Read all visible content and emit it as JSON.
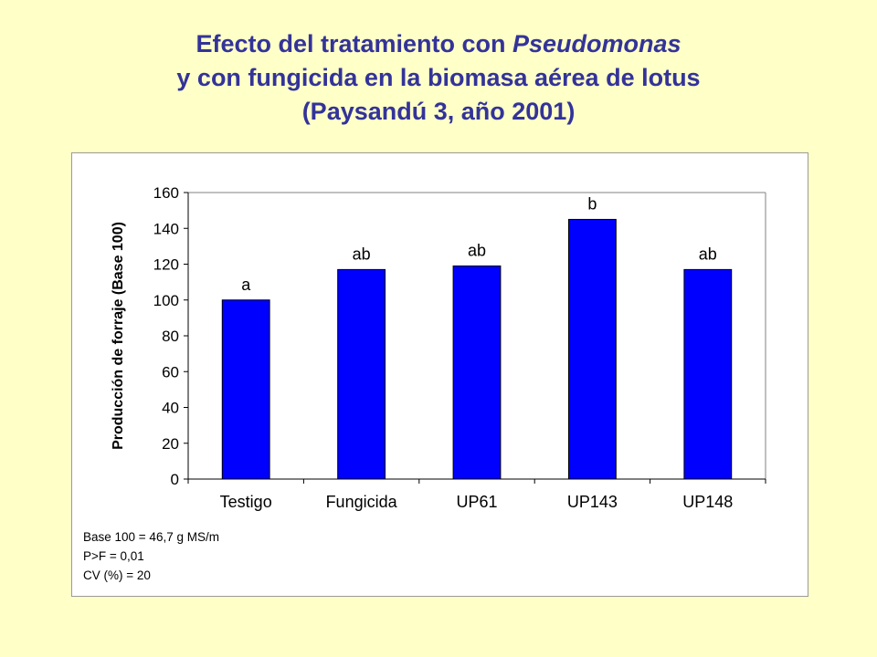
{
  "title": {
    "line1_prefix": "Efecto del tratamiento con ",
    "line1_italic": "Pseudomonas",
    "line2": "y con fungicida en la biomasa aérea de lotus",
    "line3": "(Paysandú 3, año 2001)"
  },
  "notes": [
    "Base 100 = 46,7 g MS/m",
    "P>F = 0,01",
    "CV (%) = 20"
  ],
  "colors": {
    "title": "#333399",
    "bar": "#0000ff",
    "background": "#ffffc8"
  },
  "chart_data": {
    "type": "bar",
    "title": "",
    "xlabel": "",
    "ylabel": "Producción de forraje (Base 100)",
    "categories": [
      "Testigo",
      "Fungicida",
      "UP61",
      "UP143",
      "UP148"
    ],
    "values": [
      100,
      117,
      119,
      145,
      117
    ],
    "bar_labels": [
      "a",
      "ab",
      "ab",
      "b",
      "ab"
    ],
    "ylim": [
      0,
      160
    ],
    "yticks": [
      0,
      20,
      40,
      60,
      80,
      100,
      120,
      140,
      160
    ],
    "grid": false,
    "legend": "none"
  }
}
